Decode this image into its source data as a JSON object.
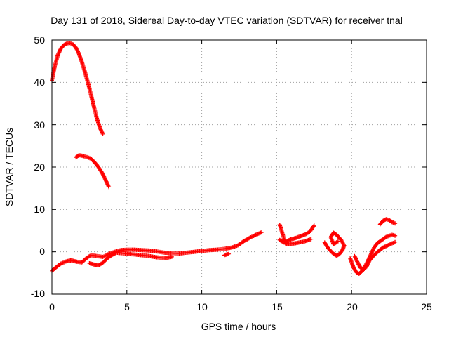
{
  "chart_data": {
    "type": "scatter",
    "title": "Day 131 of 2018, Sidereal Day-to-day VTEC variation (SDTVAR) for receiver tnal",
    "xlabel": "GPS time / hours",
    "ylabel": "SDTVAR / TECUs",
    "xlim": [
      0,
      25
    ],
    "ylim": [
      -10,
      50
    ],
    "xticks": [
      0,
      5,
      10,
      15,
      20,
      25
    ],
    "yticks": [
      -10,
      0,
      10,
      20,
      30,
      40,
      50
    ],
    "xtick_labels": [
      "0",
      "5",
      "10",
      "15",
      "20",
      "25"
    ],
    "ytick_labels": [
      "-10",
      "0",
      "10",
      "20",
      "30",
      "40",
      "50"
    ],
    "grid": true,
    "marker": "plus",
    "color": "#ff0000",
    "series": [
      {
        "name": "arc-high",
        "x": [
          0.0,
          0.2,
          0.4,
          0.6,
          0.8,
          1.0,
          1.2,
          1.4,
          1.6,
          1.8,
          2.0,
          2.2,
          2.4,
          2.6,
          2.8,
          3.0,
          3.2,
          3.4
        ],
        "y": [
          40.5,
          44.0,
          46.5,
          48.0,
          48.8,
          49.2,
          49.3,
          49.0,
          48.2,
          46.8,
          44.8,
          42.5,
          40.0,
          37.2,
          34.3,
          31.5,
          29.3,
          27.8
        ]
      },
      {
        "name": "arc-mid",
        "x": [
          1.6,
          1.8,
          2.0,
          2.2,
          2.4,
          2.6,
          2.8,
          3.0,
          3.2,
          3.4,
          3.6,
          3.8
        ],
        "y": [
          22.3,
          22.8,
          22.7,
          22.5,
          22.3,
          22.0,
          21.3,
          20.5,
          19.5,
          18.3,
          16.8,
          15.3
        ]
      },
      {
        "name": "arc-low",
        "x": [
          0.0,
          0.3,
          0.6,
          1.0,
          1.3,
          1.6,
          2.0,
          2.3,
          2.6,
          3.0,
          3.4,
          3.8,
          4.2,
          4.6,
          5.0,
          5.5,
          6.0,
          6.5,
          7.0,
          7.5,
          8.0,
          8.5,
          9.0,
          9.5,
          10.0,
          10.5,
          11.0,
          11.5,
          12.0,
          12.4,
          12.8,
          13.2,
          13.6,
          14.0
        ],
        "y": [
          -4.5,
          -3.6,
          -2.8,
          -2.2,
          -2.0,
          -2.3,
          -2.5,
          -1.5,
          -0.8,
          -1.0,
          -1.2,
          -0.5,
          0.0,
          0.4,
          0.5,
          0.5,
          0.4,
          0.3,
          0.1,
          -0.2,
          -0.3,
          -0.4,
          -0.2,
          0.0,
          0.2,
          0.4,
          0.5,
          0.7,
          1.0,
          1.5,
          2.5,
          3.3,
          4.0,
          4.6
        ]
      },
      {
        "name": "arc-low-b",
        "x": [
          2.5,
          2.8,
          3.1,
          3.4,
          3.7,
          4.0,
          4.3,
          6.0,
          6.5,
          7.0,
          7.5,
          8.0,
          11.5,
          11.8
        ],
        "y": [
          -2.7,
          -3.0,
          -3.2,
          -2.6,
          -1.5,
          -0.8,
          -0.2,
          -0.8,
          -1.0,
          -1.3,
          -1.5,
          -1.2,
          -0.8,
          -0.5
        ]
      },
      {
        "name": "arc-15h",
        "x": [
          15.2,
          15.4,
          15.7,
          16.0,
          16.3,
          16.6,
          16.9,
          17.2,
          17.5
        ],
        "y": [
          2.8,
          2.4,
          2.6,
          3.0,
          3.3,
          3.7,
          4.1,
          4.7,
          6.2
        ]
      },
      {
        "name": "arc-15h-b",
        "x": [
          15.2,
          15.6,
          16.2,
          16.8,
          17.3
        ],
        "y": [
          6.4,
          1.8,
          2.0,
          2.4,
          3.0
        ]
      },
      {
        "name": "arc-18h",
        "x": [
          18.2,
          18.4,
          18.6,
          18.8,
          19.0,
          19.2,
          19.4,
          19.5,
          19.3,
          19.0,
          18.8,
          18.6,
          18.8,
          19.1
        ],
        "y": [
          2.2,
          1.0,
          0.2,
          -0.5,
          -0.9,
          -0.5,
          0.5,
          1.5,
          2.8,
          4.0,
          4.5,
          3.5,
          1.8,
          2.5
        ]
      },
      {
        "name": "arc-20h",
        "x": [
          19.9,
          20.1,
          20.3,
          20.5,
          20.7,
          20.9,
          21.1,
          21.3,
          21.5,
          21.7,
          21.9,
          22.1,
          22.3,
          22.5,
          22.7,
          22.9
        ],
        "y": [
          -1.5,
          -3.5,
          -4.8,
          -5.2,
          -4.5,
          -3.5,
          -2.0,
          -0.5,
          1.0,
          2.0,
          2.5,
          3.0,
          3.5,
          3.8,
          4.0,
          3.8
        ]
      },
      {
        "name": "arc-20h-b",
        "x": [
          20.2,
          20.4,
          20.6,
          20.8,
          21.0,
          21.2,
          21.5,
          21.8,
          22.1,
          22.4,
          22.7,
          22.9
        ],
        "y": [
          -1.0,
          -2.5,
          -3.8,
          -4.2,
          -3.5,
          -2.0,
          -0.8,
          0.2,
          1.0,
          1.5,
          2.0,
          2.3
        ]
      },
      {
        "name": "arc-22h",
        "x": [
          21.9,
          22.1,
          22.3,
          22.5,
          22.7,
          22.9
        ],
        "y": [
          6.5,
          7.3,
          7.7,
          7.5,
          7.0,
          6.7
        ]
      }
    ]
  }
}
